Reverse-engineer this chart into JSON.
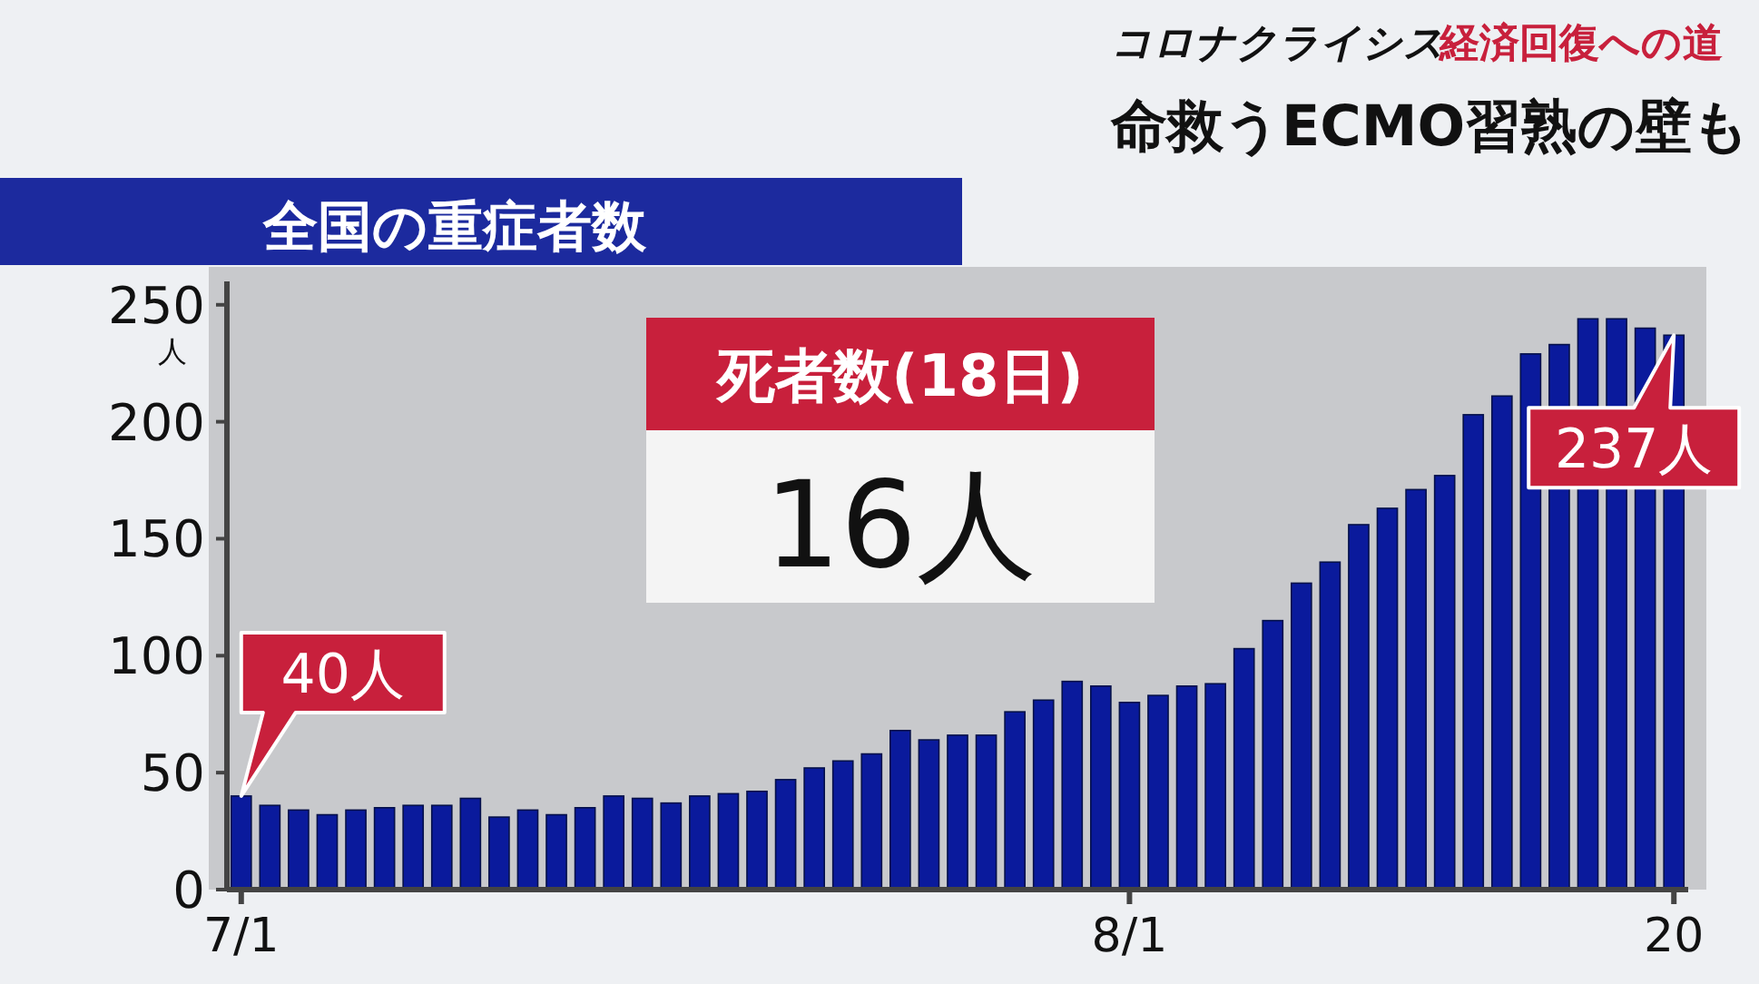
{
  "chart_data": {
    "type": "bar",
    "title": "全国の重症者数",
    "ylabel": "人",
    "annotations": [
      "コロナクライシス",
      "経済回復への道",
      "命救うECMO習熟の壁も",
      "死者数(18日)",
      "16人",
      {
        "text": "40人",
        "x": "7/1",
        "y": 40
      },
      {
        "text": "237人",
        "x": "20",
        "y": 237
      }
    ],
    "categories": [
      "7/1",
      null,
      null,
      null,
      null,
      null,
      null,
      null,
      null,
      null,
      null,
      null,
      null,
      null,
      null,
      null,
      null,
      null,
      null,
      null,
      null,
      null,
      null,
      null,
      null,
      null,
      null,
      null,
      null,
      null,
      null,
      "8/1",
      null,
      null,
      null,
      null,
      null,
      null,
      null,
      null,
      null,
      null,
      null,
      null,
      null,
      null,
      null,
      null,
      null,
      null,
      "20"
    ],
    "values": [
      40,
      36,
      34,
      32,
      34,
      35,
      36,
      36,
      39,
      31,
      34,
      32,
      35,
      40,
      39,
      37,
      40,
      41,
      42,
      47,
      52,
      55,
      58,
      68,
      64,
      66,
      66,
      76,
      81,
      89,
      87,
      80,
      83,
      87,
      88,
      103,
      115,
      131,
      140,
      156,
      163,
      171,
      177,
      203,
      211,
      229,
      233,
      244,
      244,
      240,
      237
    ],
    "color": "#0a1a9c",
    "ylim": [
      0,
      260
    ],
    "yticks": [
      0,
      50,
      100,
      150,
      200,
      250
    ]
  }
}
